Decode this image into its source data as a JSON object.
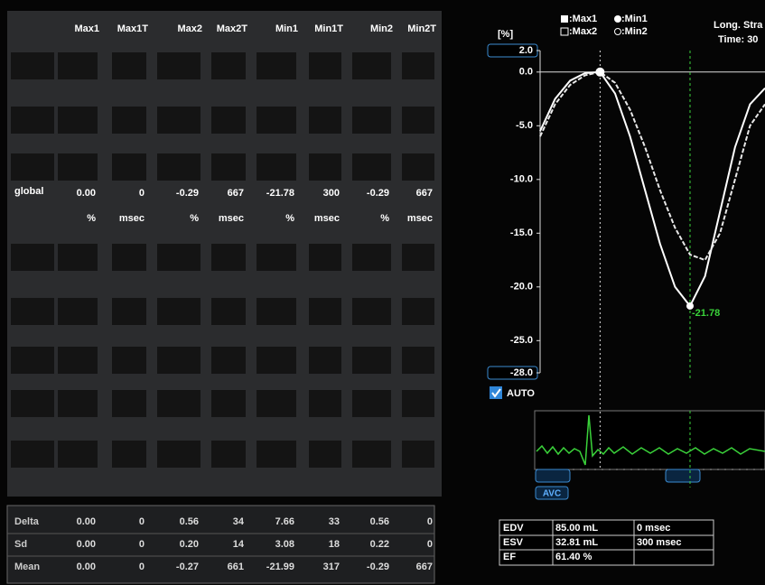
{
  "table": {
    "header": [
      "Max1",
      "Max1T",
      "Max2",
      "Max2T",
      "Min1",
      "Min1T",
      "Min2",
      "Min2T"
    ],
    "global": {
      "label": "global",
      "values": [
        "0.00",
        "0",
        "-0.29",
        "667",
        "-21.78",
        "300",
        "-0.29",
        "667"
      ],
      "units": [
        "%",
        "msec",
        "%",
        "msec",
        "%",
        "msec",
        "%",
        "msec"
      ]
    }
  },
  "stats": {
    "rows": [
      {
        "label": "Delta",
        "values": [
          "0.00",
          "0",
          "0.56",
          "34",
          "7.66",
          "33",
          "0.56",
          "0"
        ]
      },
      {
        "label": "Sd",
        "values": [
          "0.00",
          "0",
          "0.20",
          "14",
          "3.08",
          "18",
          "0.22",
          "0"
        ]
      },
      {
        "label": "Mean",
        "values": [
          "0.00",
          "0",
          "-0.27",
          "661",
          "-21.99",
          "317",
          "-0.29",
          "667"
        ]
      }
    ]
  },
  "plot": {
    "y_label": "[%]",
    "title": "Long. Stra",
    "time": "Time: 30",
    "legend": [
      ":Max1",
      ":Min1",
      ":Max2",
      ":Min2"
    ],
    "ylim": [
      -28,
      2
    ],
    "yticks": [
      {
        "value": 2,
        "label": "2.0"
      },
      {
        "value": 0,
        "label": "0.0"
      },
      {
        "value": -5,
        "label": "-5.0"
      },
      {
        "value": -10,
        "label": "-10.0"
      },
      {
        "value": -15,
        "label": "-15.0"
      },
      {
        "value": -20,
        "label": "-20.0"
      },
      {
        "value": -25,
        "label": "-25.0"
      },
      {
        "value": -28,
        "label": "-28.0"
      }
    ],
    "series": [
      {
        "color": "#ffffff",
        "style": "solid",
        "values": [
          -5.5,
          -2.5,
          -0.8,
          -0.1,
          0,
          -2,
          -6,
          -11,
          -16,
          -20,
          -21.78,
          -19,
          -13,
          -7,
          -3,
          -1.5
        ]
      },
      {
        "color": "#e8e8e8",
        "style": "dashed",
        "values": [
          -6,
          -3,
          -1.2,
          -0.3,
          0,
          -1,
          -3.5,
          -7,
          -11,
          -14.5,
          -17,
          -17.5,
          -15,
          -10,
          -5,
          -3
        ]
      }
    ],
    "annotation": "-21.78",
    "auto": "AUTO",
    "avc": "AVC"
  },
  "info": {
    "rows": [
      [
        "EDV",
        "85.00 mL",
        "0 msec"
      ],
      [
        "ESV",
        "32.81 mL",
        "300 msec"
      ],
      [
        "EF",
        "61.40 %"
      ]
    ]
  }
}
